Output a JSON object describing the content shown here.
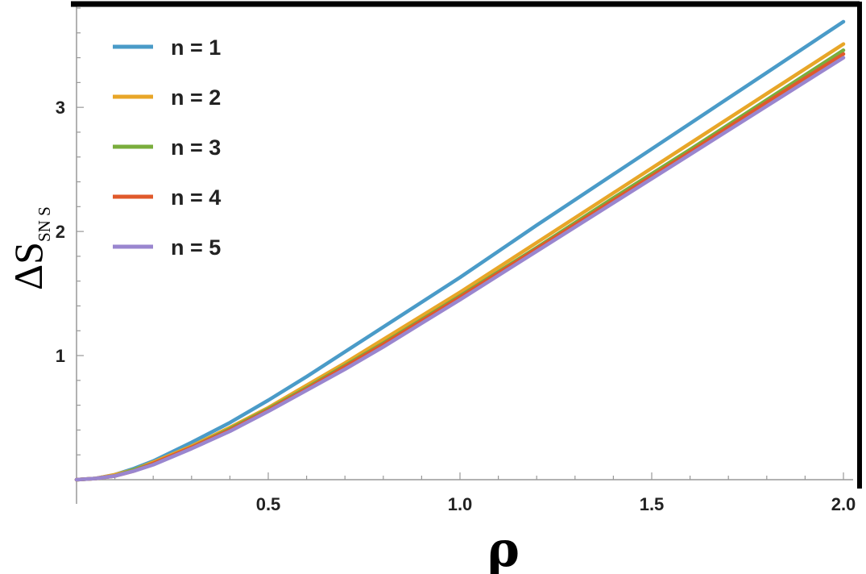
{
  "chart_data": {
    "type": "line",
    "xlabel": "ρ",
    "ylabel_main": "ΔS",
    "ylabel_sub": "SN S",
    "xlim": [
      0,
      2.0
    ],
    "ylim": [
      0,
      3.8
    ],
    "x_ticks": [
      {
        "value": 0.5,
        "label": "0.5"
      },
      {
        "value": 1.0,
        "label": "1.0"
      },
      {
        "value": 1.5,
        "label": "1.5"
      },
      {
        "value": 2.0,
        "label": "2.0"
      }
    ],
    "y_ticks": [
      {
        "value": 1,
        "label": "1"
      },
      {
        "value": 2,
        "label": "2"
      },
      {
        "value": 3,
        "label": "3"
      }
    ],
    "x_minor_step": 0.1,
    "y_minor_step": 0.2,
    "legend_position": "top-left",
    "grid": false,
    "x": [
      0,
      0.05,
      0.1,
      0.15,
      0.2,
      0.3,
      0.4,
      0.5,
      0.6,
      0.7,
      0.8,
      0.9,
      1.0,
      1.2,
      1.4,
      1.6,
      1.8,
      2.0
    ],
    "series": [
      {
        "name": "n = 1",
        "color": "#4a9bc8",
        "values": [
          0,
          0.01,
          0.04,
          0.09,
          0.15,
          0.3,
          0.46,
          0.64,
          0.83,
          1.03,
          1.23,
          1.43,
          1.63,
          2.05,
          2.46,
          2.87,
          3.28,
          3.69
        ]
      },
      {
        "name": "n = 2",
        "color": "#e8a628",
        "values": [
          0,
          0.01,
          0.04,
          0.08,
          0.14,
          0.27,
          0.42,
          0.58,
          0.76,
          0.94,
          1.13,
          1.32,
          1.51,
          1.91,
          2.31,
          2.71,
          3.11,
          3.51
        ]
      },
      {
        "name": "n = 3",
        "color": "#7aad3c",
        "values": [
          0,
          0.01,
          0.03,
          0.08,
          0.13,
          0.26,
          0.41,
          0.57,
          0.74,
          0.92,
          1.1,
          1.29,
          1.48,
          1.87,
          2.27,
          2.66,
          3.06,
          3.46
        ]
      },
      {
        "name": "n = 4",
        "color": "#e0592b",
        "values": [
          0,
          0.01,
          0.03,
          0.07,
          0.13,
          0.26,
          0.4,
          0.56,
          0.73,
          0.91,
          1.09,
          1.28,
          1.47,
          1.86,
          2.25,
          2.64,
          3.04,
          3.43
        ]
      },
      {
        "name": "n = 5",
        "color": "#9a86cf",
        "values": [
          0,
          0.01,
          0.03,
          0.07,
          0.12,
          0.25,
          0.39,
          0.55,
          0.72,
          0.89,
          1.07,
          1.26,
          1.45,
          1.84,
          2.23,
          2.62,
          3.01,
          3.4
        ]
      }
    ]
  }
}
